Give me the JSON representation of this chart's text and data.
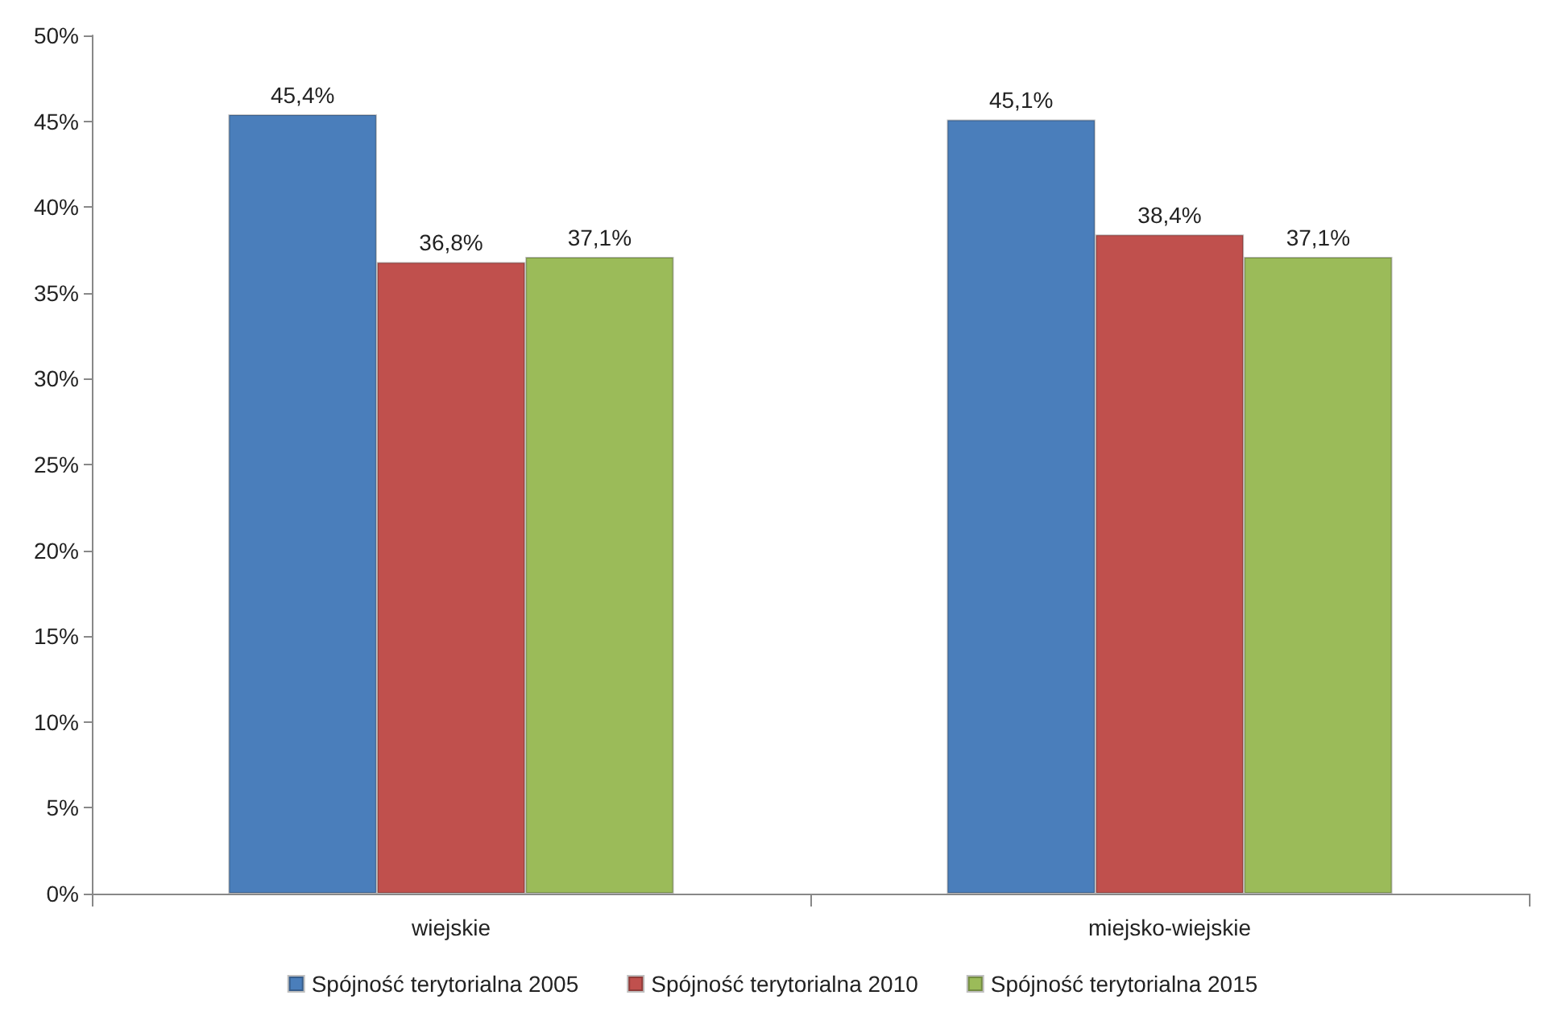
{
  "chart_data": {
    "type": "bar",
    "categories": [
      "wiejskie",
      "miejsko-wiejskie"
    ],
    "series": [
      {
        "name": "Spójność terytorialna 2005",
        "color": "#4a7ebb",
        "values": [
          45.4,
          45.1
        ],
        "value_labels": [
          "45,4%",
          "45,1%"
        ]
      },
      {
        "name": "Spójność terytorialna 2010",
        "color": "#c0504d",
        "values": [
          36.8,
          38.4
        ],
        "value_labels": [
          "36,8%",
          "38,4%"
        ]
      },
      {
        "name": "Spójność terytorialna 2015",
        "color": "#9bbb59",
        "values": [
          37.1,
          37.1
        ],
        "value_labels": [
          "37,1%",
          "37,1%"
        ]
      }
    ],
    "ylim": [
      0,
      50
    ],
    "yticks": [
      {
        "value": 0,
        "label": "0%"
      },
      {
        "value": 5,
        "label": "5%"
      },
      {
        "value": 10,
        "label": "10%"
      },
      {
        "value": 15,
        "label": "15%"
      },
      {
        "value": 20,
        "label": "20%"
      },
      {
        "value": 25,
        "label": "25%"
      },
      {
        "value": 30,
        "label": "30%"
      },
      {
        "value": 35,
        "label": "35%"
      },
      {
        "value": 40,
        "label": "40%"
      },
      {
        "value": 45,
        "label": "45%"
      },
      {
        "value": 50,
        "label": "50%"
      }
    ],
    "grid": false,
    "legend": "bottom"
  }
}
